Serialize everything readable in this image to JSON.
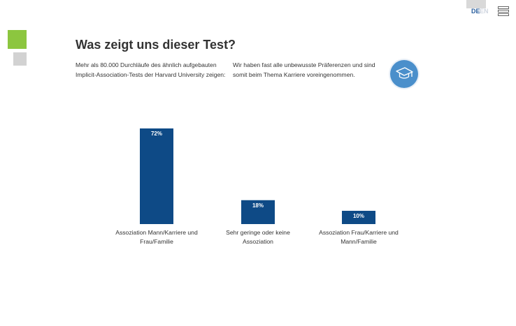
{
  "header": {
    "lang_active": "DE",
    "lang_inactive": "EN"
  },
  "page": {
    "title": "Was zeigt uns dieser Test?",
    "intro_left": "Mehr als 80.000 Durchläufe des ähnlich aufgebauten Implicit-Association-Tests der Harvard University zeigen:",
    "intro_right": "Wir haben fast alle unbewusste Präferenzen und sind somit beim Thema Karriere voreingenommen."
  },
  "colors": {
    "bar": "#0e4a86",
    "accent_green": "#8cc63f",
    "accent_gray": "#d2d2d2",
    "icon_circle": "#4a8fcb"
  },
  "icons": {
    "cap": "graduation-cap-icon",
    "menu": "hamburger-menu-icon"
  },
  "chart_data": {
    "type": "bar",
    "categories": [
      "Assoziation Mann/Karriere und Frau/Familie",
      "Sehr geringe oder keine Assoziation",
      "Assoziation Frau/Karriere und Mann/Familie"
    ],
    "values": [
      72,
      18,
      10
    ],
    "value_labels": [
      "72%",
      "18%",
      "10%"
    ],
    "title": "",
    "xlabel": "",
    "ylabel": "",
    "ylim": [
      0,
      72
    ],
    "grid": false
  }
}
